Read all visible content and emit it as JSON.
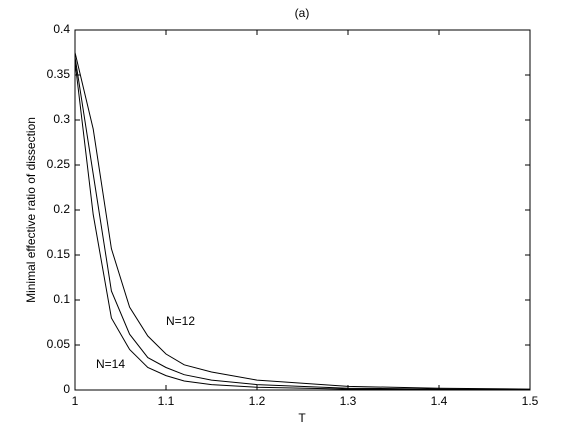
{
  "chart_data": {
    "type": "line",
    "title": "(a)",
    "xlabel": "T",
    "ylabel": "Minimal effective ratio of dissection",
    "x": [
      1,
      1.02,
      1.04,
      1.06,
      1.08,
      1.1,
      1.12,
      1.15,
      1.2,
      1.3,
      1.4,
      1.5
    ],
    "series": [
      {
        "color": "#000000",
        "values": [
          0.375,
          0.29,
          0.157,
          0.092,
          0.06,
          0.04,
          0.028,
          0.02,
          0.011,
          0.004,
          0.002,
          0.001
        ]
      },
      {
        "color": "#000000",
        "values": [
          0.37,
          0.24,
          0.11,
          0.062,
          0.036,
          0.025,
          0.017,
          0.011,
          0.006,
          0.002,
          0.001,
          0.0005
        ]
      },
      {
        "color": "#000000",
        "values": [
          0.365,
          0.195,
          0.08,
          0.045,
          0.025,
          0.016,
          0.01,
          0.006,
          0.003,
          0.001,
          0.0005,
          0.0002
        ]
      }
    ],
    "annotations": [
      "N=12",
      "N=14"
    ],
    "xlim": [
      1,
      1.5
    ],
    "xticks": [
      1,
      1.1,
      1.2,
      1.3,
      1.4,
      1.5
    ],
    "ylim": [
      0,
      0.4
    ],
    "yticks": [
      0,
      0.05,
      0.1,
      0.15,
      0.2,
      0.25,
      0.3,
      0.35,
      0.4
    ],
    "grid": false
  }
}
